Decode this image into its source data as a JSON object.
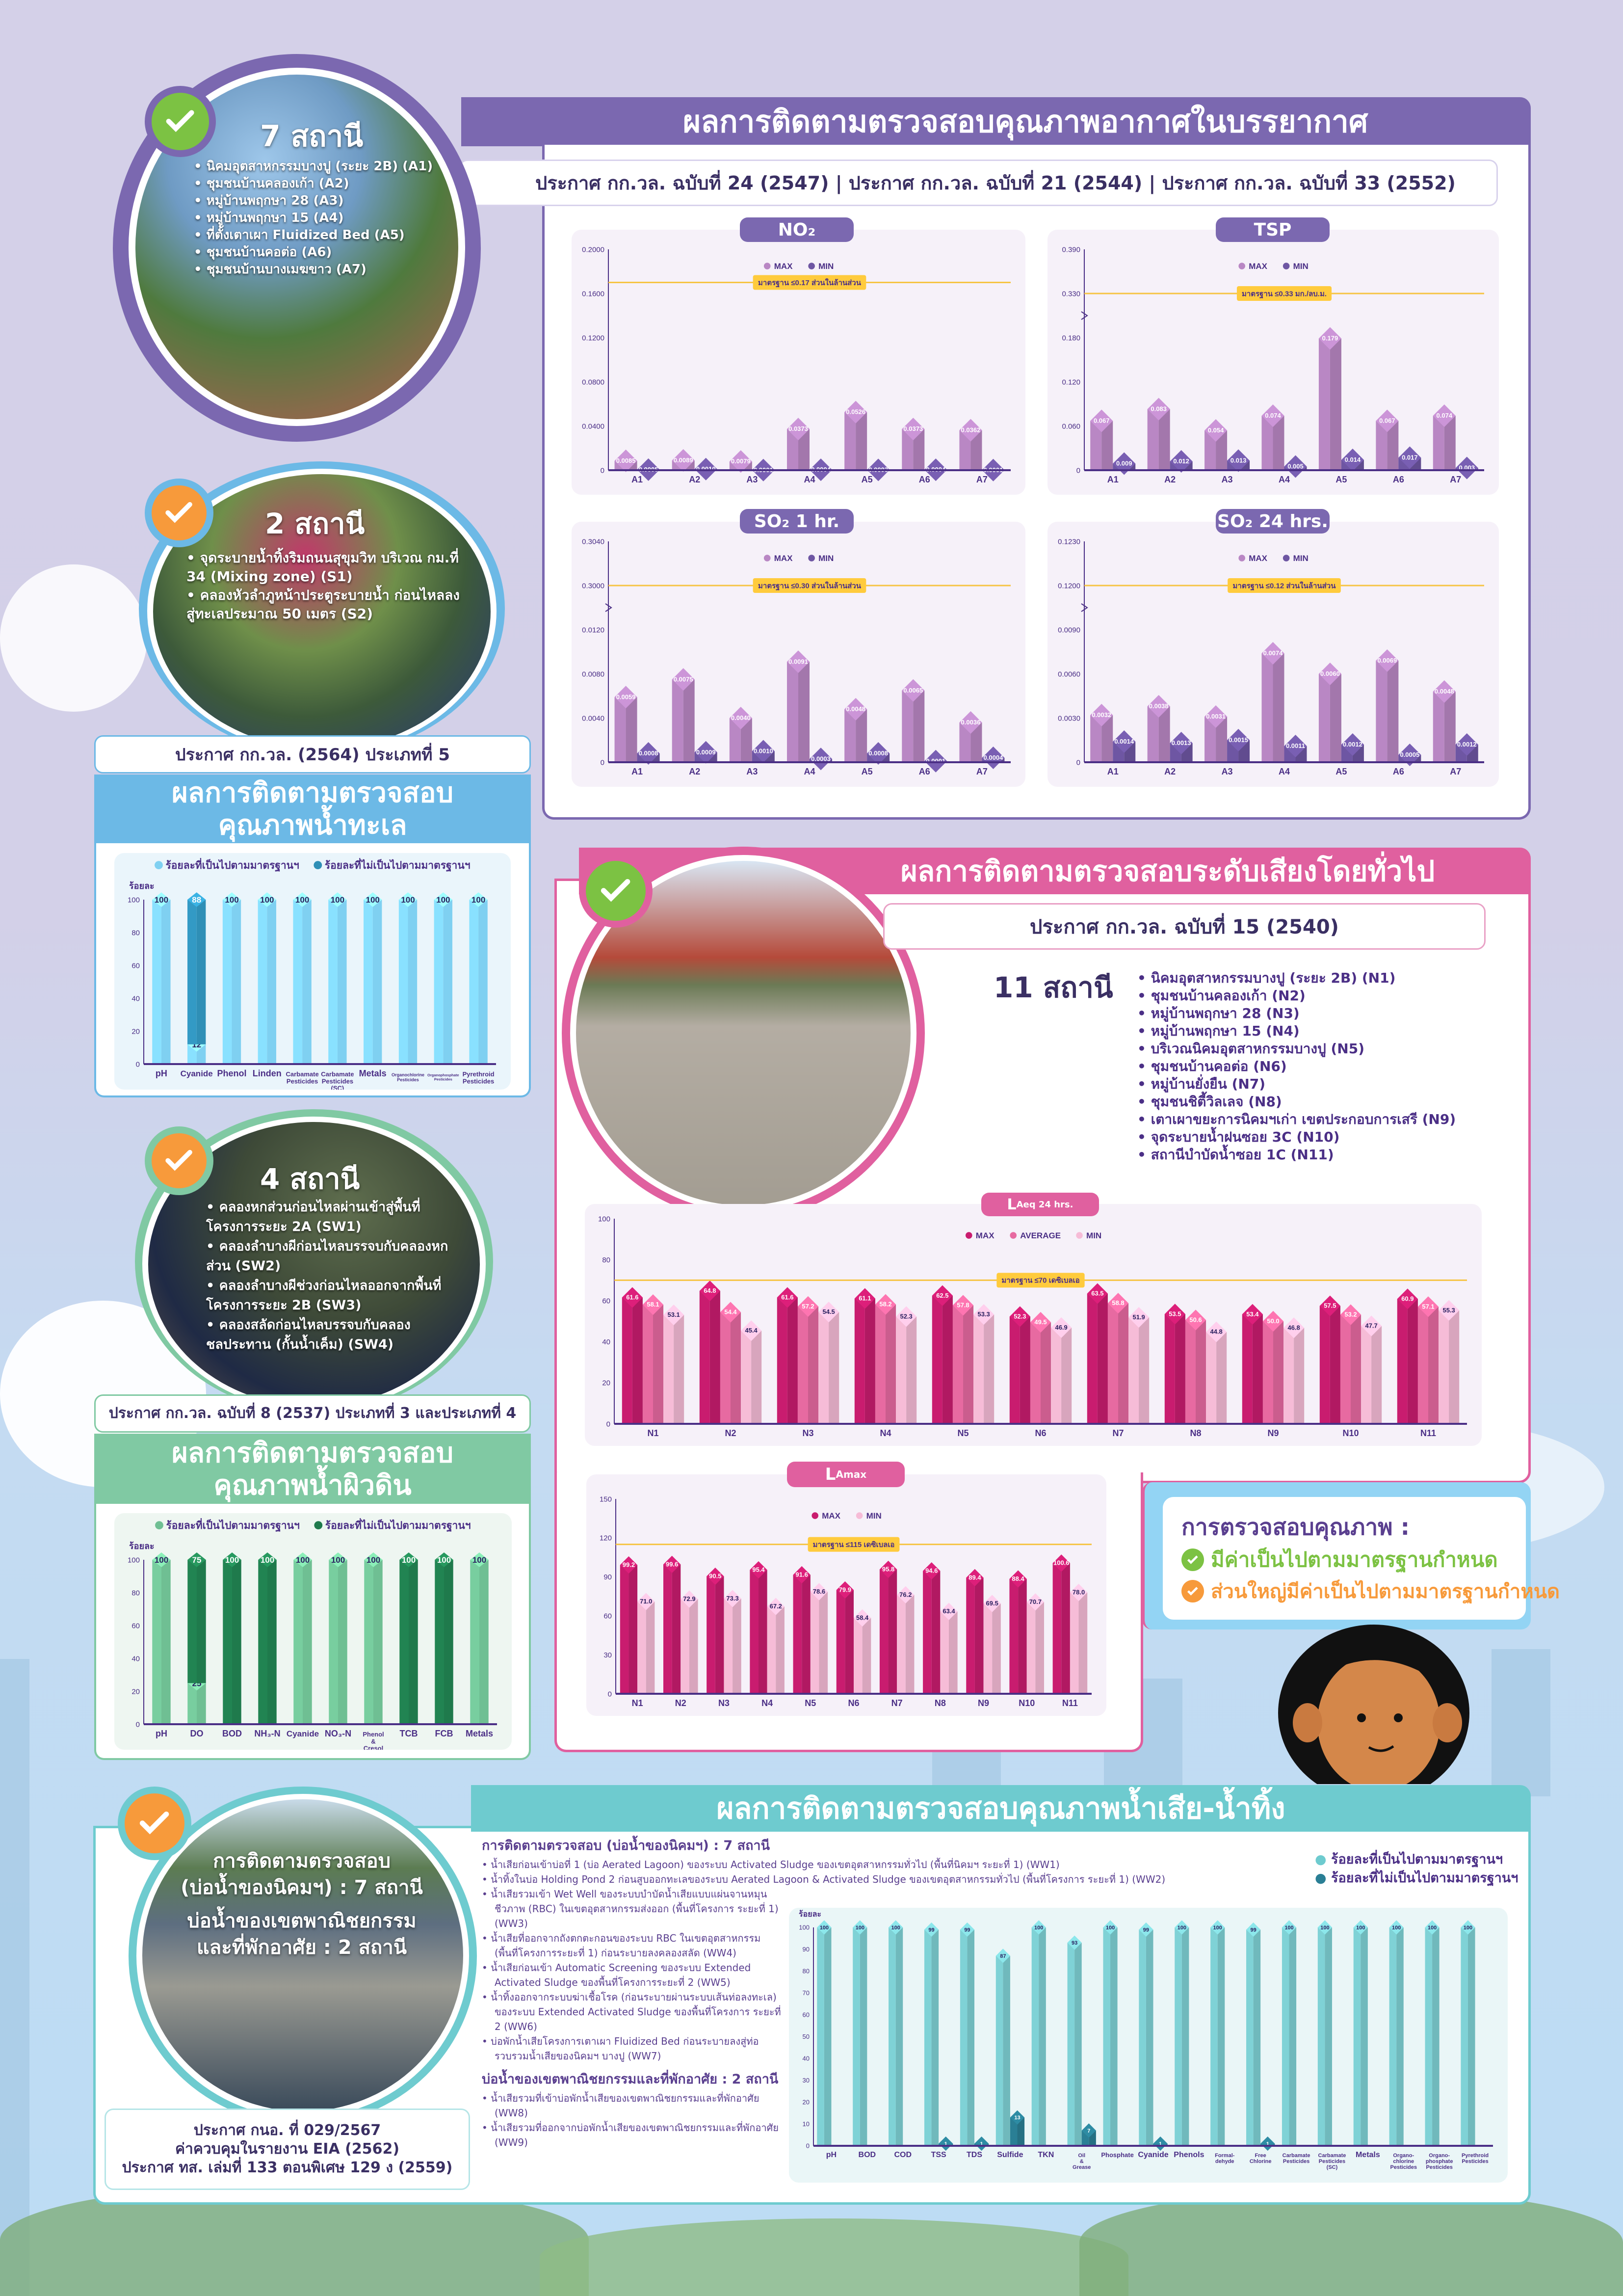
{
  "air": {
    "title": "ผลการติดตามตรวจสอบคุณภาพอากาศในบรรยากาศ",
    "standards": "ประกาศ กก.วล. ฉบับที่ 24 (2547) | ประกาศ กก.วล. ฉบับที่ 21 (2544) | ประกาศ กก.วล. ฉบับที่ 33 (2552)",
    "station_count": "7 สถานี",
    "status": "pass",
    "stations": [
      "นิคมอุตสาหกรรมบางปู (ระยะ 2B) (A1)",
      "ชุมชนบ้านคลองเก้า (A2)",
      "หมู่บ้านพฤกษา 28 (A3)",
      "หมู่บ้านพฤกษา 15 (A4)",
      "ที่ตั้งเตาเผา Fluidized Bed (A5)",
      "ชุมชนบ้านคอต่อ (A6)",
      "ชุมชนบ้านบางเมฆขาว (A7)"
    ]
  },
  "sea": {
    "station_count": "2 สถานี",
    "status": "mostly-pass",
    "stations": [
      "จุดระบายน้ำทิ้งริมถนนสุขุมวิท บริเวณ กม.ที่ 34 (Mixing zone) (S1)",
      "คลองหัวลำภูหน้าประตูระบายน้ำ ก่อนไหลลงสู่ทะเลประมาณ 50 เมตร (S2)"
    ],
    "standard": "ประกาศ กก.วล. (2564) ประเภทที่ 5",
    "title_line1": "ผลการติดตามตรวจสอบ",
    "title_line2": "คุณภาพน้ำทะเล"
  },
  "surface": {
    "station_count": "4 สถานี",
    "status": "mostly-pass",
    "stations": [
      "คลองหกส่วนก่อนไหลผ่านเข้าสู่พื้นที่โครงการระยะ 2A (SW1)",
      "คลองลำบางผีก่อนไหลบรรจบกับคลองหกส่วน (SW2)",
      "คลองลำบางผีช่วงก่อนไหลออกจากพื้นที่โครงการระยะ 2B (SW3)",
      "คลองสลัดก่อนไหลบรรจบกับคลองชลประทาน (กั้นน้ำเค็ม) (SW4)"
    ],
    "standard": "ประกาศ กก.วล. ฉบับที่ 8 (2537) ประเภทที่ 3 และประเภทที่ 4",
    "title_line1": "ผลการติดตามตรวจสอบ",
    "title_line2": "คุณภาพน้ำผิวดิน"
  },
  "noise": {
    "title": "ผลการติดตามตรวจสอบระดับเสียงโดยทั่วไป",
    "standard": "ประกาศ กก.วล. ฉบับที่ 15 (2540)",
    "station_count": "11 สถานี",
    "status": "pass",
    "stations": [
      "นิคมอุตสาหกรรมบางปู (ระยะ 2B) (N1)",
      "ชุมชนบ้านคลองเก้า (N2)",
      "หมู่บ้านพฤกษา 28 (N3)",
      "หมู่บ้านพฤกษา 15 (N4)",
      "บริเวณนิคมอุตสาหกรรมบางปู (N5)",
      "ชุมชนบ้านคอต่อ (N6)",
      "หมู่บ้านยั่งยืน (N7)",
      "ชุมชนชิตี้วิลเลจ (N8)",
      "เตาเผาขยะการนิคมฯเก่า เขตประกอบการเสรี (N9)",
      "จุดระบายน้ำฝนซอย 3C (N10)",
      "สถานีบำบัดน้ำซอย 1C (N11)"
    ]
  },
  "summary": {
    "title": "การตรวจสอบคุณภาพ :",
    "pass": "มีค่าเป็นไปตามมาตรฐานกำหนด",
    "mostly_pass": "ส่วนใหญ่มีค่าเป็นไปตามมาตรฐานกำหนด"
  },
  "wastewater": {
    "title": "ผลการติดตามตรวจสอบคุณภาพน้ำเสีย-น้ำทิ้ง",
    "status": "mostly-pass",
    "circle_lines": [
      "การติดตามตรวจสอบ",
      "(บ่อน้ำของนิคมฯ) : 7 สถานี",
      "บ่อน้ำของเขตพาณิชยกรรม",
      "และที่พักอาศัย : 2 สถานี"
    ],
    "standards": [
      "ประกาศ กนอ. ที่ 029/2567",
      "ค่าควบคุมในรายงาน EIA (2562)",
      "ประกาศ ทส. เล่มที่ 133 ตอนพิเศษ 129 ง (2559)"
    ],
    "group1_title": "การติดตามตรวจสอบ (บ่อน้ำของนิคมฯ) : 7 สถานี",
    "group1_items": [
      "น้ำเสียก่อนเข้าบ่อที่ 1 (บ่อ Aerated Lagoon) ของระบบ Activated Sludge ของเขตอุตสาหกรรมทั่วไป (พื้นที่นิคมฯ ระยะที่ 1) (WW1)",
      "น้ำทิ้งในบ่อ Holding Pond 2 ก่อนสูบออกทะเลของระบบ Aerated Lagoon & Activated Sludge ของเขตอุตสาหกรรมทั่วไป (พื้นที่โครงการ ระยะที่ 1) (WW2)",
      "น้ำเสียรวมเข้า Wet Well ของระบบบำบัดน้ำเสียแบบแผ่นจานหมุนชีวภาพ (RBC) ในเขตอุตสาหกรรมส่งออก (พื้นที่โครงการ ระยะที่ 1) (WW3)",
      "น้ำเสียที่ออกจากถังตกตะกอนของระบบ RBC ในเขตอุตสาหกรรม (พื้นที่โครงการระยะที่ 1) ก่อนระบายลงคลองสลัด (WW4)",
      "น้ำเสียก่อนเข้า Automatic Screening ของระบบ Extended Activated Sludge ของพื้นที่โครงการระยะที่ 2 (WW5)",
      "น้ำทิ้งออกจากระบบฆ่าเชื้อโรค (ก่อนระบายผ่านระบบเส้นท่อลงทะเล) ของระบบ Extended Activated Sludge ของพื้นที่โครงการ ระยะที่ 2 (WW6)",
      "บ่อพักน้ำเสียโครงการเตาเผา Fluidized Bed ก่อนระบายลงสู่ท่อรวบรวมน้ำเสียของนิคมฯ บางปู (WW7)"
    ],
    "group2_title": "บ่อน้ำของเขตพาณิชยกรรมและที่พักอาศัย : 2 สถานี",
    "group2_items": [
      "น้ำเสียรวมที่เข้าบ่อพักน้ำเสียของเขตพาณิชยกรรมและที่พักอาศัย (WW8)",
      "น้ำเสียรวมที่ออกจากบ่อพักน้ำเสียของเขตพาณิชยกรรมและที่พักอาศัย (WW9)"
    ]
  },
  "colors": {
    "air": "#7b68b0",
    "sea": "#6cb9e6",
    "surface": "#80c9a3",
    "noise": "#e0609f",
    "wastewater": "#6ecbcf",
    "pass": "#7cc243",
    "mostly_pass": "#f79a3b",
    "standard_line": "#f6c444",
    "text": "#4b2f86"
  },
  "chart_data": [
    {
      "type": "bar",
      "title": "NO₂",
      "categories": [
        "A1",
        "A2",
        "A3",
        "A4",
        "A5",
        "A6",
        "A7"
      ],
      "decimals": 4,
      "series": [
        {
          "name": "MAX",
          "values": [
            0.0085,
            0.0089,
            0.0079,
            0.0373,
            0.0526,
            0.0373,
            0.0362
          ]
        },
        {
          "name": "MIN",
          "values": [
            0.0005,
            0.001,
            0.0001,
            0.0004,
            0.0003,
            0.0004,
            0.0001
          ]
        }
      ],
      "colors": [
        "#b987c4",
        "#6e56a3"
      ],
      "yticks": [
        "0",
        "0.0400",
        "0.0800",
        "0.1200",
        "0.1600",
        "0.2000"
      ],
      "axis_break": false,
      "standard": {
        "value": 0.17,
        "label": "มาตรฐาน ≤0.17 ส่วนในล้านส่วน"
      },
      "legend": "top"
    },
    {
      "type": "bar",
      "title": "TSP",
      "categories": [
        "A1",
        "A2",
        "A3",
        "A4",
        "A5",
        "A6",
        "A7"
      ],
      "decimals": 3,
      "series": [
        {
          "name": "MAX",
          "values": [
            0.067,
            0.083,
            0.054,
            0.074,
            0.179,
            0.067,
            0.074
          ]
        },
        {
          "name": "MIN",
          "values": [
            0.009,
            0.012,
            0.013,
            0.005,
            0.014,
            0.017,
            0.003
          ]
        }
      ],
      "colors": [
        "#b987c4",
        "#6e56a3"
      ],
      "yticks": [
        "0",
        "0.060",
        "0.120",
        "0.180",
        "0.330",
        "0.390"
      ],
      "axis_break": true,
      "standard": {
        "value": 0.33,
        "label": "มาตรฐาน ≤0.33 มก./ลบ.ม."
      },
      "legend": "top"
    },
    {
      "type": "bar",
      "title": "SO₂ 1 hr.",
      "categories": [
        "A1",
        "A2",
        "A3",
        "A4",
        "A5",
        "A6",
        "A7"
      ],
      "decimals": 4,
      "series": [
        {
          "name": "MAX",
          "values": [
            0.0059,
            0.0075,
            0.004,
            0.0091,
            0.0048,
            0.0065,
            0.0036
          ]
        },
        {
          "name": "MIN",
          "values": [
            0.0008,
            0.0009,
            0.001,
            0.0003,
            0.0008,
            0.0001,
            0.0004
          ]
        }
      ],
      "colors": [
        "#b987c4",
        "#6e56a3"
      ],
      "yticks": [
        "0",
        "0.0040",
        "0.0080",
        "0.0120",
        "0.3000",
        "0.3040"
      ],
      "axis_break": true,
      "standard": {
        "value": 0.3,
        "label": "มาตรฐาน ≤0.30 ส่วนในล้านส่วน"
      },
      "legend": "top"
    },
    {
      "type": "bar",
      "title": "SO₂ 24 hrs.",
      "categories": [
        "A1",
        "A2",
        "A3",
        "A4",
        "A5",
        "A6",
        "A7"
      ],
      "decimals": 4,
      "series": [
        {
          "name": "MAX",
          "values": [
            0.0032,
            0.0038,
            0.0031,
            0.0074,
            0.006,
            0.0069,
            0.0048
          ]
        },
        {
          "name": "MIN",
          "values": [
            0.0014,
            0.0013,
            0.0015,
            0.0011,
            0.0012,
            0.0005,
            0.0012
          ]
        }
      ],
      "colors": [
        "#b987c4",
        "#6e56a3"
      ],
      "yticks": [
        "0",
        "0.0030",
        "0.0060",
        "0.0090",
        "0.1200",
        "0.1230"
      ],
      "axis_break": true,
      "standard": {
        "value": 0.12,
        "label": "มาตรฐาน ≤0.12 ส่วนในล้านส่วน"
      },
      "legend": "top"
    },
    {
      "type": "bar",
      "title": "ผลการติดตามตรวจสอบคุณภาพน้ำทะเล",
      "stacked": true,
      "decimals": 0,
      "ylabel": "ร้อยละ",
      "categories": [
        "pH",
        "Cyanide",
        "Phenol",
        "Linden",
        "Carbamate Pesticides",
        "Carbamate Pesticides (SC)",
        "Metals",
        "Organochlorine Pesticides",
        "Organophosphate Pesticides",
        "Pyrethroid Pesticides"
      ],
      "series": [
        {
          "name": "ร้อยละที่เป็นไปตามมาตรฐานฯ",
          "values": [
            100,
            12,
            100,
            100,
            100,
            100,
            100,
            100,
            100,
            100
          ]
        },
        {
          "name": "ร้อยละที่ไม่เป็นไปตามมาตรฐานฯ",
          "values": [
            0,
            88,
            0,
            0,
            0,
            0,
            0,
            0,
            0,
            0
          ]
        }
      ],
      "colors": [
        "#7fd0f1",
        "#2f8fb6"
      ],
      "yticks": [
        "0",
        "20",
        "40",
        "60",
        "80",
        "100"
      ],
      "legend": "top"
    },
    {
      "type": "bar",
      "title": "ผลการติดตามตรวจสอบคุณภาพน้ำผิวดิน",
      "stacked": true,
      "decimals": 0,
      "ylabel": "ร้อยละ",
      "categories": [
        "pH",
        "DO",
        "BOD",
        "NH₃-N",
        "Cyanide",
        "NO₃-N",
        "Phenol & Cresol",
        "TCB",
        "FCB",
        "Metals"
      ],
      "series": [
        {
          "name": "ร้อยละที่เป็นไปตามมาตรฐานฯ",
          "values": [
            100,
            25,
            0,
            0,
            100,
            100,
            100,
            0,
            0,
            100
          ]
        },
        {
          "name": "ร้อยละที่ไม่เป็นไปตามมาตรฐานฯ",
          "values": [
            0,
            75,
            100,
            100,
            0,
            0,
            0,
            100,
            100,
            0
          ]
        }
      ],
      "colors": [
        "#6fbf93",
        "#1f7a4c"
      ],
      "yticks": [
        "0",
        "20",
        "40",
        "60",
        "80",
        "100"
      ],
      "legend": "top"
    },
    {
      "type": "bar",
      "title": "L",
      "subtitle": "Aeq 24 hrs.",
      "categories": [
        "N1",
        "N2",
        "N3",
        "N4",
        "N5",
        "N6",
        "N7",
        "N8",
        "N9",
        "N10",
        "N11"
      ],
      "decimals": 1,
      "series": [
        {
          "name": "MAX",
          "values": [
            61.6,
            64.8,
            61.6,
            61.1,
            62.5,
            52.3,
            63.5,
            53.5,
            53.4,
            57.5,
            60.9
          ]
        },
        {
          "name": "AVERAGE",
          "values": [
            58.1,
            54.4,
            57.2,
            58.2,
            57.8,
            49.5,
            58.8,
            50.6,
            50.0,
            53.2,
            57.1
          ]
        },
        {
          "name": "MIN",
          "values": [
            53.1,
            45.4,
            54.5,
            52.3,
            53.3,
            46.9,
            51.9,
            44.8,
            46.8,
            47.7,
            55.3
          ]
        }
      ],
      "colors": [
        "#c91c6f",
        "#e76aa1",
        "#f6bcd7"
      ],
      "yticks": [
        "0",
        "20",
        "40",
        "60",
        "80",
        "100"
      ],
      "standard": {
        "value": 70,
        "label": "มาตรฐาน ≤70 เดซิเบลเอ"
      },
      "legend": "top"
    },
    {
      "type": "bar",
      "title": "L",
      "subtitle": "Amax",
      "categories": [
        "N1",
        "N2",
        "N3",
        "N4",
        "N5",
        "N6",
        "N7",
        "N8",
        "N9",
        "N10",
        "N11"
      ],
      "decimals": 1,
      "series": [
        {
          "name": "MAX",
          "values": [
            99.2,
            99.6,
            90.5,
            95.4,
            91.6,
            79.9,
            95.8,
            94.6,
            89.4,
            88.4,
            100.6
          ]
        },
        {
          "name": "MIN",
          "values": [
            71.0,
            72.9,
            73.3,
            67.2,
            78.6,
            58.4,
            76.2,
            63.4,
            69.5,
            70.7,
            78.0
          ]
        }
      ],
      "colors": [
        "#c91c6f",
        "#f6bcd7"
      ],
      "yticks": [
        "0",
        "30",
        "60",
        "90",
        "120",
        "150"
      ],
      "standard": {
        "value": 115,
        "label": "มาตรฐาน ≤115 เดซิเบลเอ"
      },
      "legend": "top"
    },
    {
      "type": "bar",
      "title": "ผลการติดตามตรวจสอบคุณภาพน้ำเสีย-น้ำทิ้ง",
      "stacked": true,
      "decimals": 0,
      "ylabel": "ร้อยละ",
      "categories": [
        "pH",
        "BOD",
        "COD",
        "TSS",
        "TDS",
        "Sulfide",
        "TKN",
        "Oil & Grease",
        "Phosphate",
        "Cyanide",
        "Phenols",
        "Formal- dehyde",
        "Free Chlorine",
        "Carbamate Pesticides",
        "Carbamate Pesticides (SC)",
        "Metals",
        "Organo- chlorine Pesticides",
        "Organo- phosphate Pesticides",
        "Pyrethroid Pesticides"
      ],
      "series": [
        {
          "name": "ร้อยละที่เป็นไปตามมาตรฐานฯ",
          "values": [
            100,
            100,
            100,
            99,
            99,
            87,
            100,
            93,
            100,
            99,
            100,
            100,
            99,
            100,
            100,
            100,
            100,
            100,
            100
          ]
        },
        {
          "name": "ร้อยละที่ไม่เป็นไปตามมาตรฐานฯ",
          "values": [
            0,
            0,
            0,
            1,
            1,
            13,
            0,
            7,
            0,
            1,
            0,
            0,
            1,
            0,
            0,
            0,
            0,
            0,
            0
          ]
        }
      ],
      "colors": [
        "#7fd2d6",
        "#2a7f95"
      ],
      "yticks": [
        "0",
        "10",
        "20",
        "30",
        "40",
        "50",
        "60",
        "70",
        "80",
        "90",
        "100"
      ],
      "legend": "top-right"
    }
  ]
}
